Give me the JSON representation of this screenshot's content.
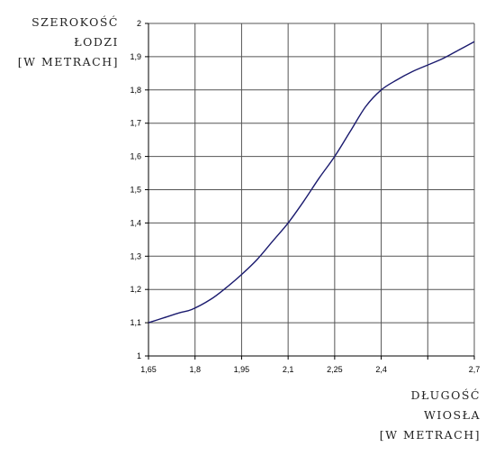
{
  "chart_data": {
    "type": "line",
    "title": "",
    "ylabel_lines": [
      "SZEROKOŚĆ",
      "ŁODZI",
      "[W METRACH]"
    ],
    "xlabel_lines": [
      "DŁUGOŚĆ",
      "WIOSŁA",
      "[W METRACH]"
    ],
    "xlim": [
      1.65,
      2.7
    ],
    "ylim": [
      1,
      2
    ],
    "x_gridlines": [
      1.65,
      1.8,
      1.95,
      2.1,
      2.25,
      2.4,
      2.55,
      2.7
    ],
    "y_gridlines": [
      1,
      1.1,
      1.2,
      1.3,
      1.4,
      1.5,
      1.6,
      1.7,
      1.8,
      1.9,
      2
    ],
    "x_tick_labels": [
      {
        "value": 1.65,
        "label": "1,65"
      },
      {
        "value": 1.8,
        "label": "1,8"
      },
      {
        "value": 1.95,
        "label": "1,95"
      },
      {
        "value": 2.1,
        "label": "2,1"
      },
      {
        "value": 2.25,
        "label": "2,25"
      },
      {
        "value": 2.4,
        "label": "2,4"
      },
      {
        "value": 2.7,
        "label": "2,7"
      }
    ],
    "y_tick_labels": [
      {
        "value": 1,
        "label": "1"
      },
      {
        "value": 1.1,
        "label": "1,1"
      },
      {
        "value": 1.2,
        "label": "1,2"
      },
      {
        "value": 1.3,
        "label": "1,3"
      },
      {
        "value": 1.4,
        "label": "1,4"
      },
      {
        "value": 1.5,
        "label": "1,5"
      },
      {
        "value": 1.6,
        "label": "1,6"
      },
      {
        "value": 1.7,
        "label": "1,7"
      },
      {
        "value": 1.8,
        "label": "1,8"
      },
      {
        "value": 1.9,
        "label": "1,9"
      },
      {
        "value": 2,
        "label": "2"
      }
    ],
    "grid": true,
    "colors": {
      "line": "#1a1a6e",
      "grid": "#555555",
      "axis": "#000000"
    },
    "series": [
      {
        "x": [
          1.65,
          1.7,
          1.75,
          1.79,
          1.85,
          1.9,
          1.95,
          2.0,
          2.05,
          2.1,
          2.15,
          2.2,
          2.25,
          2.3,
          2.35,
          2.4,
          2.45,
          2.5,
          2.55,
          2.6,
          2.65,
          2.7
        ],
        "y": [
          1.1,
          1.115,
          1.13,
          1.14,
          1.17,
          1.205,
          1.245,
          1.29,
          1.345,
          1.4,
          1.465,
          1.535,
          1.6,
          1.675,
          1.75,
          1.8,
          1.83,
          1.855,
          1.875,
          1.895,
          1.92,
          1.945
        ]
      }
    ]
  }
}
